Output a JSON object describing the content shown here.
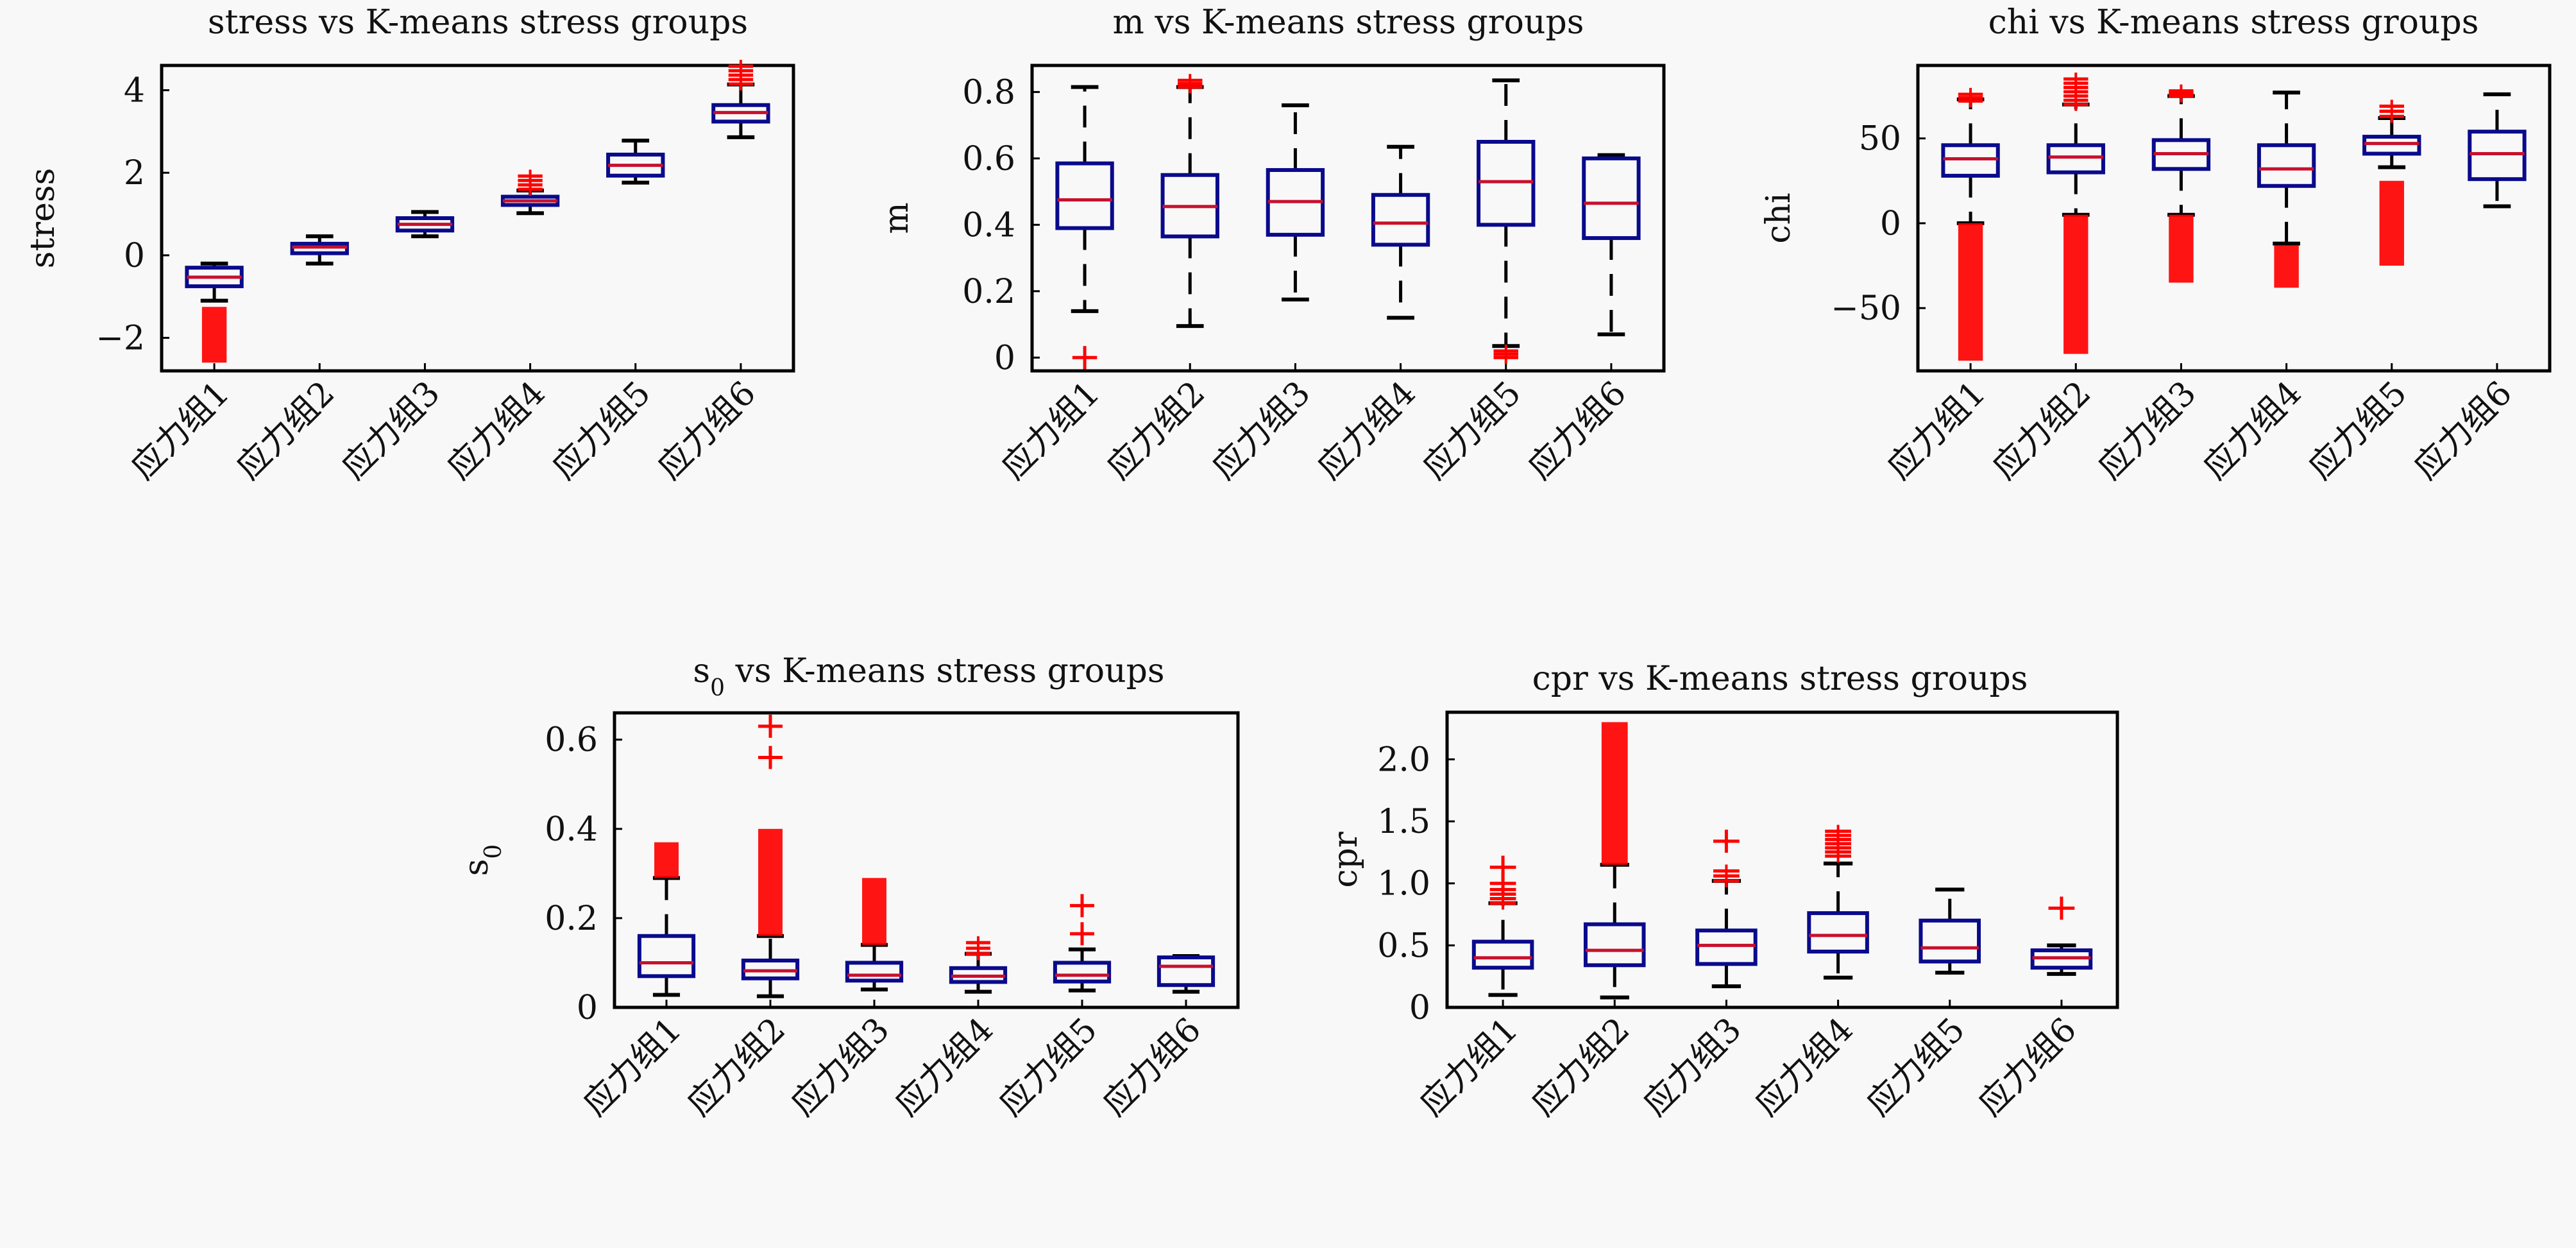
{
  "figure": {
    "categories": [
      "应力组1",
      "应力组2",
      "应力组3",
      "应力组4",
      "应力组5",
      "应力组6"
    ],
    "colors": {
      "box": "#0a0a8c",
      "median": "#c8102e",
      "whisker": "#000000",
      "outlier": "#ff0000",
      "axes": "#000000",
      "background": "#f8f8f8"
    }
  },
  "chart_data": [
    {
      "id": "stress",
      "type": "box",
      "title": "stress vs K-means stress groups",
      "xlabel": "",
      "ylabel": "stress",
      "ylabel_sub": "",
      "ylim": [
        -2.8,
        4.6
      ],
      "yticks": [
        -2,
        0,
        2,
        4
      ],
      "ytick_labels": [
        "−2",
        "0",
        "2",
        "4"
      ],
      "whisker_style": "solid",
      "boxes": [
        {
          "category": "应力组1",
          "whisker_low": -1.1,
          "q1": -0.75,
          "median": -0.53,
          "q3": -0.3,
          "whisker_high": -0.2,
          "outlier_ranges": [
            [
              -2.6,
              -1.25
            ]
          ]
        },
        {
          "category": "应力组2",
          "whisker_low": -0.2,
          "q1": 0.05,
          "median": 0.2,
          "q3": 0.28,
          "whisker_high": 0.46,
          "outlier_ranges": []
        },
        {
          "category": "应力组3",
          "whisker_low": 0.46,
          "q1": 0.6,
          "median": 0.75,
          "q3": 0.9,
          "whisker_high": 1.05,
          "outlier_ranges": []
        },
        {
          "category": "应力组4",
          "whisker_low": 1.02,
          "q1": 1.22,
          "median": 1.32,
          "q3": 1.42,
          "whisker_high": 1.57,
          "outlier_ranges": [
            [
              1.6,
              1.92
            ]
          ]
        },
        {
          "category": "应力组5",
          "whisker_low": 1.76,
          "q1": 1.93,
          "median": 2.18,
          "q3": 2.44,
          "whisker_high": 2.78,
          "outlier_ranges": []
        },
        {
          "category": "应力组6",
          "whisker_low": 2.86,
          "q1": 3.24,
          "median": 3.46,
          "q3": 3.64,
          "whisker_high": 4.14,
          "outlier_ranges": [
            [
              4.15,
              4.58
            ]
          ]
        }
      ]
    },
    {
      "id": "m",
      "type": "box",
      "title": "m vs K-means stress groups",
      "xlabel": "",
      "ylabel": "m",
      "ylabel_sub": "",
      "ylim": [
        -0.04,
        0.88
      ],
      "yticks": [
        0,
        0.2,
        0.4,
        0.6,
        0.8
      ],
      "ytick_labels": [
        "0",
        "0.2",
        "0.4",
        "0.6",
        "0.8"
      ],
      "whisker_style": "dashed",
      "boxes": [
        {
          "category": "应力组1",
          "whisker_low": 0.14,
          "q1": 0.39,
          "median": 0.475,
          "q3": 0.585,
          "whisker_high": 0.815,
          "outlier_ranges": [
            [
              0.0,
              0.0
            ]
          ]
        },
        {
          "category": "应力组2",
          "whisker_low": 0.095,
          "q1": 0.365,
          "median": 0.455,
          "q3": 0.55,
          "whisker_high": 0.815,
          "outlier_ranges": [
            [
              0.815,
              0.835
            ]
          ]
        },
        {
          "category": "应力组3",
          "whisker_low": 0.175,
          "q1": 0.37,
          "median": 0.47,
          "q3": 0.565,
          "whisker_high": 0.76,
          "outlier_ranges": []
        },
        {
          "category": "应力组4",
          "whisker_low": 0.12,
          "q1": 0.34,
          "median": 0.405,
          "q3": 0.49,
          "whisker_high": 0.635,
          "outlier_ranges": []
        },
        {
          "category": "应力组5",
          "whisker_low": 0.035,
          "q1": 0.4,
          "median": 0.53,
          "q3": 0.65,
          "whisker_high": 0.835,
          "outlier_ranges": [
            [
              0.0,
              0.02
            ]
          ]
        },
        {
          "category": "应力组6",
          "whisker_low": 0.07,
          "q1": 0.36,
          "median": 0.465,
          "q3": 0.6,
          "whisker_high": 0.61,
          "outlier_ranges": []
        }
      ]
    },
    {
      "id": "chi",
      "type": "box",
      "title": "chi vs K-means stress groups",
      "xlabel": "",
      "ylabel": "chi",
      "ylabel_sub": "",
      "ylim": [
        -87,
        93
      ],
      "yticks": [
        -50,
        0,
        50
      ],
      "ytick_labels": [
        "−50",
        "0",
        "50"
      ],
      "whisker_style": "dashed",
      "boxes": [
        {
          "category": "应力组1",
          "whisker_low": 0,
          "q1": 28,
          "median": 38,
          "q3": 46,
          "whisker_high": 73,
          "outlier_ranges": [
            [
              -81,
              0
            ],
            [
              72,
              76
            ]
          ]
        },
        {
          "category": "应力组2",
          "whisker_low": 5,
          "q1": 30,
          "median": 39,
          "q3": 46,
          "whisker_high": 70,
          "outlier_ranges": [
            [
              -77,
              5
            ],
            [
              70,
              85
            ]
          ]
        },
        {
          "category": "应力组3",
          "whisker_low": 5,
          "q1": 32,
          "median": 41,
          "q3": 49,
          "whisker_high": 75,
          "outlier_ranges": [
            [
              -35,
              5
            ],
            [
              75,
              78
            ]
          ]
        },
        {
          "category": "应力组4",
          "whisker_low": -12,
          "q1": 22,
          "median": 32,
          "q3": 46,
          "whisker_high": 77,
          "outlier_ranges": [
            [
              -38,
              -13
            ]
          ]
        },
        {
          "category": "应力组5",
          "whisker_low": 33,
          "q1": 41,
          "median": 47,
          "q3": 51,
          "whisker_high": 62,
          "outlier_ranges": [
            [
              -25,
              25
            ],
            [
              63,
              69
            ]
          ]
        },
        {
          "category": "应力组6",
          "whisker_low": 10,
          "q1": 26,
          "median": 41,
          "q3": 54,
          "whisker_high": 76,
          "outlier_ranges": []
        }
      ]
    },
    {
      "id": "s0",
      "type": "box",
      "title": "s",
      "title_sub": "0",
      "title_rest": " vs K-means stress groups",
      "xlabel": "",
      "ylabel": "s",
      "ylabel_sub": "0",
      "ylim": [
        0,
        0.66
      ],
      "yticks": [
        0,
        0.2,
        0.4,
        0.6
      ],
      "ytick_labels": [
        "0",
        "0.2",
        "0.4",
        "0.6"
      ],
      "whisker_style": "dashed",
      "boxes": [
        {
          "category": "应力组1",
          "whisker_low": 0.028,
          "q1": 0.07,
          "median": 0.1,
          "q3": 0.16,
          "whisker_high": 0.29,
          "outlier_ranges": [
            [
              0.29,
              0.37
            ]
          ]
        },
        {
          "category": "应力组2",
          "whisker_low": 0.025,
          "q1": 0.065,
          "median": 0.082,
          "q3": 0.105,
          "whisker_high": 0.16,
          "outlier_ranges": [
            [
              0.16,
              0.4
            ],
            [
              0.56,
              0.56
            ],
            [
              0.63,
              0.63
            ]
          ]
        },
        {
          "category": "应力组3",
          "whisker_low": 0.04,
          "q1": 0.06,
          "median": 0.072,
          "q3": 0.1,
          "whisker_high": 0.14,
          "outlier_ranges": [
            [
              0.14,
              0.29
            ]
          ]
        },
        {
          "category": "应力组4",
          "whisker_low": 0.035,
          "q1": 0.057,
          "median": 0.07,
          "q3": 0.088,
          "whisker_high": 0.12,
          "outlier_ranges": [
            [
              0.12,
              0.145
            ]
          ]
        },
        {
          "category": "应力组5",
          "whisker_low": 0.038,
          "q1": 0.058,
          "median": 0.072,
          "q3": 0.1,
          "whisker_high": 0.13,
          "outlier_ranges": [
            [
              0.165,
              0.165
            ],
            [
              0.228,
              0.228
            ]
          ]
        },
        {
          "category": "应力组6",
          "whisker_low": 0.035,
          "q1": 0.05,
          "median": 0.092,
          "q3": 0.112,
          "whisker_high": 0.115,
          "outlier_ranges": []
        }
      ]
    },
    {
      "id": "cpr",
      "type": "box",
      "title": "cpr vs K-means stress groups",
      "xlabel": "",
      "ylabel": "cpr",
      "ylabel_sub": "",
      "ylim": [
        0,
        2.38
      ],
      "yticks": [
        0,
        0.5,
        1.0,
        1.5,
        2.0
      ],
      "ytick_labels": [
        "0",
        "0.5",
        "1.0",
        "1.5",
        "2.0"
      ],
      "whisker_style": "dashed",
      "boxes": [
        {
          "category": "应力组1",
          "whisker_low": 0.1,
          "q1": 0.32,
          "median": 0.4,
          "q3": 0.53,
          "whisker_high": 0.84,
          "outlier_ranges": [
            [
              0.84,
              0.95
            ],
            [
              1.0,
              1.0
            ],
            [
              1.13,
              1.13
            ]
          ]
        },
        {
          "category": "应力组2",
          "whisker_low": 0.08,
          "q1": 0.34,
          "median": 0.46,
          "q3": 0.67,
          "whisker_high": 1.15,
          "outlier_ranges": [
            [
              1.15,
              2.3
            ]
          ]
        },
        {
          "category": "应力组3",
          "whisker_low": 0.17,
          "q1": 0.35,
          "median": 0.5,
          "q3": 0.62,
          "whisker_high": 1.02,
          "outlier_ranges": [
            [
              1.02,
              1.1
            ],
            [
              1.34,
              1.34
            ]
          ]
        },
        {
          "category": "应力组4",
          "whisker_low": 0.24,
          "q1": 0.45,
          "median": 0.58,
          "q3": 0.76,
          "whisker_high": 1.16,
          "outlier_ranges": [
            [
              1.22,
              1.42
            ]
          ]
        },
        {
          "category": "应力组5",
          "whisker_low": 0.28,
          "q1": 0.37,
          "median": 0.48,
          "q3": 0.7,
          "whisker_high": 0.95,
          "outlier_ranges": []
        },
        {
          "category": "应力组6",
          "whisker_low": 0.27,
          "q1": 0.32,
          "median": 0.4,
          "q3": 0.46,
          "whisker_high": 0.5,
          "outlier_ranges": [
            [
              0.8,
              0.8
            ]
          ]
        }
      ]
    }
  ]
}
